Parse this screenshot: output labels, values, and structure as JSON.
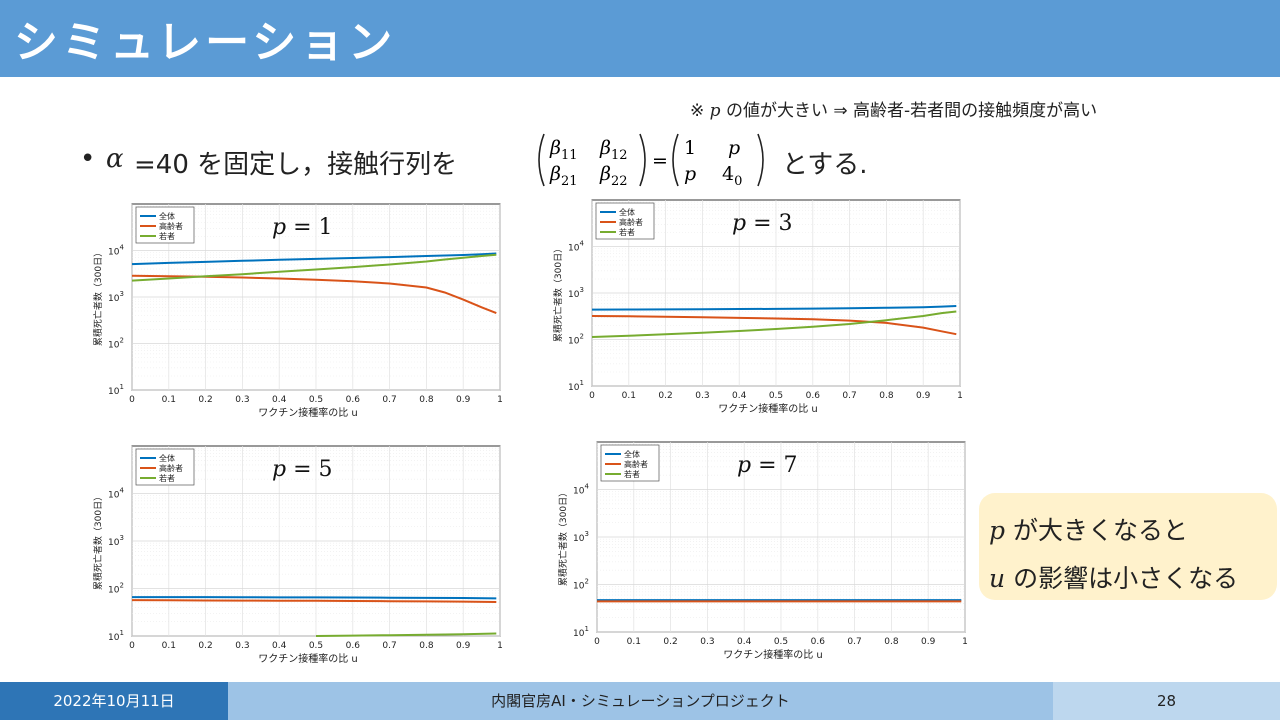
{
  "header": {
    "title": "シミュレーション"
  },
  "note": {
    "prefix": "※",
    "var": "p",
    "text": "の値が大きい ⇒ 高齢者-若者間の接触頻度が高い"
  },
  "statement": {
    "bullet": "•",
    "alpha": "α",
    "pre": "=40 を固定し，接触行列を",
    "post": "とする.",
    "matrix_left": [
      "β11",
      "β12",
      "β21",
      "β22"
    ],
    "matrix_right": [
      "1",
      "p",
      "p",
      "40"
    ]
  },
  "callout": {
    "line1_var": "p",
    "line1": "が大きくなると",
    "line2_var": "u",
    "line2": "の影響は小さくなる"
  },
  "footer": {
    "date": "2022年10月11日",
    "org": "内閣官房AI・シミュレーションプロジェクト",
    "page": "28"
  },
  "colors": {
    "total": "#0072bd",
    "elderly": "#d95319",
    "young": "#77ac30",
    "title_bg": "#5b9bd5"
  },
  "chart_data": [
    {
      "type": "line",
      "annotation": "p = 1",
      "xlabel": "ワクチン接種率の比 u",
      "ylabel": "累積死亡者数（300日）",
      "xlim": [
        0,
        1
      ],
      "ylim": [
        10,
        100000
      ],
      "yscale": "log",
      "grid": true,
      "legend": "top-left",
      "xticks": [
        "0",
        "0.1",
        "0.2",
        "0.3",
        "0.4",
        "0.5",
        "0.6",
        "0.7",
        "0.8",
        "0.9",
        "1"
      ],
      "yticks": [
        {
          "value": 10,
          "label": "10",
          "exp": "1"
        },
        {
          "value": 100,
          "label": "10",
          "exp": "2"
        },
        {
          "value": 1000,
          "label": "10",
          "exp": "3"
        },
        {
          "value": 10000,
          "label": "10",
          "exp": "4"
        }
      ],
      "x": [
        0,
        0.1,
        0.2,
        0.3,
        0.4,
        0.5,
        0.6,
        0.7,
        0.8,
        0.85,
        0.9,
        0.95,
        0.99
      ],
      "series": [
        {
          "name": "全体",
          "values": [
            5100,
            5400,
            5700,
            6000,
            6300,
            6600,
            6900,
            7200,
            7600,
            7800,
            8000,
            8300,
            8600
          ]
        },
        {
          "name": "高齢者",
          "values": [
            2850,
            2800,
            2720,
            2620,
            2500,
            2350,
            2180,
            1950,
            1600,
            1250,
            880,
            600,
            450
          ]
        },
        {
          "name": "若者",
          "values": [
            2250,
            2500,
            2800,
            3100,
            3500,
            3900,
            4400,
            5000,
            5800,
            6400,
            7000,
            7600,
            8100
          ]
        }
      ]
    },
    {
      "type": "line",
      "annotation": "p = 3",
      "xlabel": "ワクチン接種率の比 u",
      "ylabel": "累積死亡者数（300日）",
      "xlim": [
        0,
        1
      ],
      "ylim": [
        10,
        100000
      ],
      "yscale": "log",
      "grid": true,
      "legend": "top-left",
      "xticks": [
        "0",
        "0.1",
        "0.2",
        "0.3",
        "0.4",
        "0.5",
        "0.6",
        "0.7",
        "0.8",
        "0.9",
        "1"
      ],
      "yticks": [
        {
          "value": 10,
          "label": "10",
          "exp": "1"
        },
        {
          "value": 100,
          "label": "10",
          "exp": "2"
        },
        {
          "value": 1000,
          "label": "10",
          "exp": "3"
        },
        {
          "value": 10000,
          "label": "10",
          "exp": "4"
        }
      ],
      "x": [
        0,
        0.1,
        0.2,
        0.3,
        0.4,
        0.5,
        0.6,
        0.7,
        0.8,
        0.9,
        0.95,
        0.99
      ],
      "series": [
        {
          "name": "全体",
          "values": [
            440,
            442,
            445,
            448,
            452,
            456,
            462,
            470,
            480,
            495,
            510,
            525
          ]
        },
        {
          "name": "高齢者",
          "values": [
            320,
            315,
            308,
            300,
            292,
            283,
            272,
            255,
            228,
            180,
            150,
            130
          ]
        },
        {
          "name": "若者",
          "values": [
            113,
            120,
            130,
            140,
            152,
            168,
            188,
            215,
            260,
            320,
            370,
            400
          ]
        }
      ]
    },
    {
      "type": "line",
      "annotation": "p = 5",
      "xlabel": "ワクチン接種率の比 u",
      "ylabel": "累積死亡者数（300日）",
      "xlim": [
        0,
        1
      ],
      "ylim": [
        10,
        100000
      ],
      "yscale": "log",
      "grid": true,
      "legend": "top-left",
      "xticks": [
        "0",
        "0.1",
        "0.2",
        "0.3",
        "0.4",
        "0.5",
        "0.6",
        "0.7",
        "0.8",
        "0.9",
        "1"
      ],
      "yticks": [
        {
          "value": 10,
          "label": "10",
          "exp": "1"
        },
        {
          "value": 100,
          "label": "10",
          "exp": "2"
        },
        {
          "value": 1000,
          "label": "10",
          "exp": "3"
        },
        {
          "value": 10000,
          "label": "10",
          "exp": "4"
        }
      ],
      "x": [
        0,
        0.1,
        0.2,
        0.3,
        0.4,
        0.5,
        0.6,
        0.7,
        0.8,
        0.9,
        0.99
      ],
      "series": [
        {
          "name": "全体",
          "values": [
            66,
            66,
            66,
            65.5,
            65,
            65,
            64.5,
            64,
            63.5,
            63,
            62
          ]
        },
        {
          "name": "高齢者",
          "values": [
            57,
            56.5,
            56,
            55.5,
            55,
            55,
            54.5,
            54,
            53.5,
            53,
            52
          ]
        },
        {
          "name": "若者",
          "values": [
            null,
            null,
            null,
            null,
            null,
            10,
            10.2,
            10.4,
            10.6,
            10.9,
            11.3
          ]
        }
      ]
    },
    {
      "type": "line",
      "annotation": "p = 7",
      "xlabel": "ワクチン接種率の比 u",
      "ylabel": "累積死亡者数（300日）",
      "xlim": [
        0,
        1
      ],
      "ylim": [
        10,
        100000
      ],
      "yscale": "log",
      "grid": true,
      "legend": "top-left",
      "xticks": [
        "0",
        "0.1",
        "0.2",
        "0.3",
        "0.4",
        "0.5",
        "0.6",
        "0.7",
        "0.8",
        "0.9",
        "1"
      ],
      "yticks": [
        {
          "value": 10,
          "label": "10",
          "exp": "1"
        },
        {
          "value": 100,
          "label": "10",
          "exp": "2"
        },
        {
          "value": 1000,
          "label": "10",
          "exp": "3"
        },
        {
          "value": 10000,
          "label": "10",
          "exp": "4"
        }
      ],
      "x": [
        0,
        0.5,
        0.99
      ],
      "series": [
        {
          "name": "全体",
          "values": [
            47,
            47,
            47
          ]
        },
        {
          "name": "高齢者",
          "values": [
            44,
            44,
            44
          ]
        },
        {
          "name": "若者",
          "values": [
            null,
            null,
            null
          ]
        }
      ]
    }
  ]
}
